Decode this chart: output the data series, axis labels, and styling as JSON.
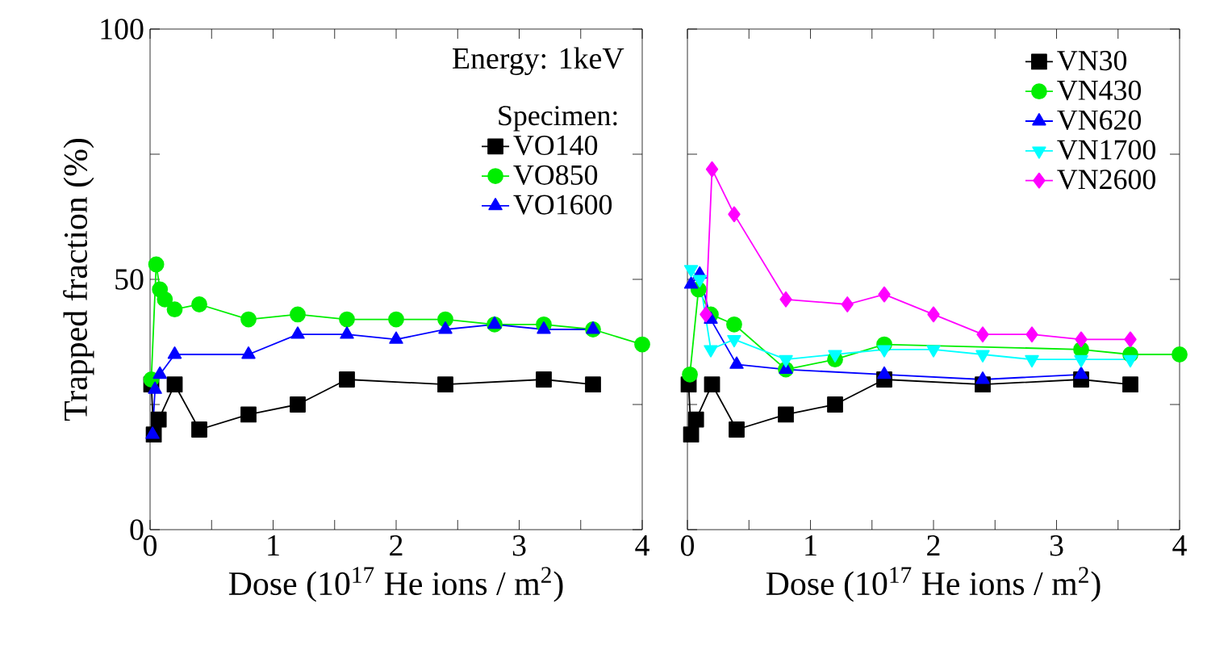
{
  "chart_data": [
    {
      "type": "line",
      "xlabel": "Dose (10$^{17}$ He ions / m$^{2}$)",
      "ylabel": "Trapped fraction (%)",
      "legend_title": "Specimen:",
      "annotations": [
        "Energy:  1keV"
      ],
      "legend": "top right",
      "xlim": [
        0,
        4
      ],
      "ylim": [
        0,
        100
      ],
      "xticks": [
        0,
        {
          "value": 0.5,
          "label": null
        },
        1,
        {
          "value": 1.5,
          "label": null
        },
        2,
        {
          "value": 2.5,
          "label": null
        },
        3,
        {
          "value": 3.5,
          "label": null
        },
        4
      ],
      "yticks": [
        0,
        {
          "value": 25,
          "label": null
        },
        50,
        {
          "value": 75,
          "label": null
        },
        100
      ],
      "series": [
        {
          "name": "VO140",
          "color": "#000000",
          "marker": "square",
          "x": [
            0.01,
            0.03,
            0.07,
            0.2,
            0.4,
            0.8,
            1.2,
            1.6,
            2.4,
            3.2,
            3.6
          ],
          "values": [
            29,
            19,
            22,
            29,
            20,
            23,
            25,
            30,
            29,
            30,
            29
          ]
        },
        {
          "name": "VO850",
          "color": "#00ee00",
          "marker": "circle",
          "x": [
            0.01,
            0.05,
            0.08,
            0.12,
            0.2,
            0.4,
            0.8,
            1.2,
            1.6,
            2.0,
            2.4,
            2.8,
            3.2,
            3.6,
            4.0
          ],
          "values": [
            30,
            53,
            48,
            46,
            44,
            45,
            42,
            43,
            42,
            42,
            42,
            41,
            41,
            40,
            37
          ]
        },
        {
          "name": "VO1600",
          "color": "#0000ff",
          "marker": "triangle",
          "x": [
            0.02,
            0.04,
            0.08,
            0.2,
            0.8,
            1.2,
            1.6,
            2.0,
            2.4,
            2.8,
            3.2,
            3.6
          ],
          "values": [
            19,
            28,
            31,
            35,
            35,
            39,
            39,
            38,
            40,
            41,
            40,
            40
          ]
        }
      ]
    },
    {
      "type": "line",
      "xlabel": "Dose (10$^{17}$ He ions / m$^{2}$)",
      "legend": "top right",
      "tick_labels": "x",
      "xlim": [
        0,
        4
      ],
      "ylim": [
        0,
        100
      ],
      "xticks": [
        0,
        {
          "value": 0.5,
          "label": null
        },
        1,
        {
          "value": 1.5,
          "label": null
        },
        2,
        {
          "value": 2.5,
          "label": null
        },
        3,
        {
          "value": 3.5,
          "label": null
        },
        4
      ],
      "yticks": [
        {
          "value": 0,
          "label": null
        },
        {
          "value": 25,
          "label": null
        },
        {
          "value": 50,
          "label": null
        },
        {
          "value": 75,
          "label": null
        },
        {
          "value": 100,
          "label": null
        }
      ],
      "series": [
        {
          "name": "VN30",
          "color": "#000000",
          "marker": "square",
          "x": [
            0.01,
            0.03,
            0.07,
            0.2,
            0.4,
            0.8,
            1.2,
            1.6,
            2.4,
            3.2,
            3.6
          ],
          "values": [
            29,
            19,
            22,
            29,
            20,
            23,
            25,
            30,
            29,
            30,
            29
          ]
        },
        {
          "name": "VN430",
          "color": "#00ee00",
          "marker": "circle",
          "x": [
            0.02,
            0.09,
            0.19,
            0.38,
            0.8,
            1.2,
            1.6,
            3.2,
            3.6,
            4.0
          ],
          "values": [
            31,
            48,
            43,
            41,
            32,
            34,
            37,
            36,
            35,
            35
          ]
        },
        {
          "name": "VN620",
          "color": "#0000ff",
          "marker": "triangle",
          "x": [
            0.03,
            0.1,
            0.19,
            0.4,
            0.8,
            1.6,
            2.4,
            3.2
          ],
          "values": [
            49,
            51,
            42,
            33,
            32,
            31,
            30,
            31
          ]
        },
        {
          "name": "VN1700",
          "color": "#00ffff",
          "marker": "triangle-down",
          "x": [
            0.03,
            0.1,
            0.19,
            0.38,
            0.8,
            1.2,
            1.6,
            2.0,
            2.4,
            2.8,
            3.2,
            3.6
          ],
          "values": [
            52,
            50,
            36,
            38,
            34,
            35,
            36,
            36,
            35,
            34,
            34,
            34
          ]
        },
        {
          "name": "VN2600",
          "color": "#ff00ff",
          "marker": "diamond",
          "x": [
            0.15,
            0.2,
            0.38,
            0.8,
            1.3,
            1.6,
            2.0,
            2.4,
            2.8,
            3.2,
            3.6
          ],
          "values": [
            43,
            72,
            63,
            46,
            45,
            47,
            43,
            39,
            39,
            38,
            38
          ]
        }
      ]
    }
  ]
}
